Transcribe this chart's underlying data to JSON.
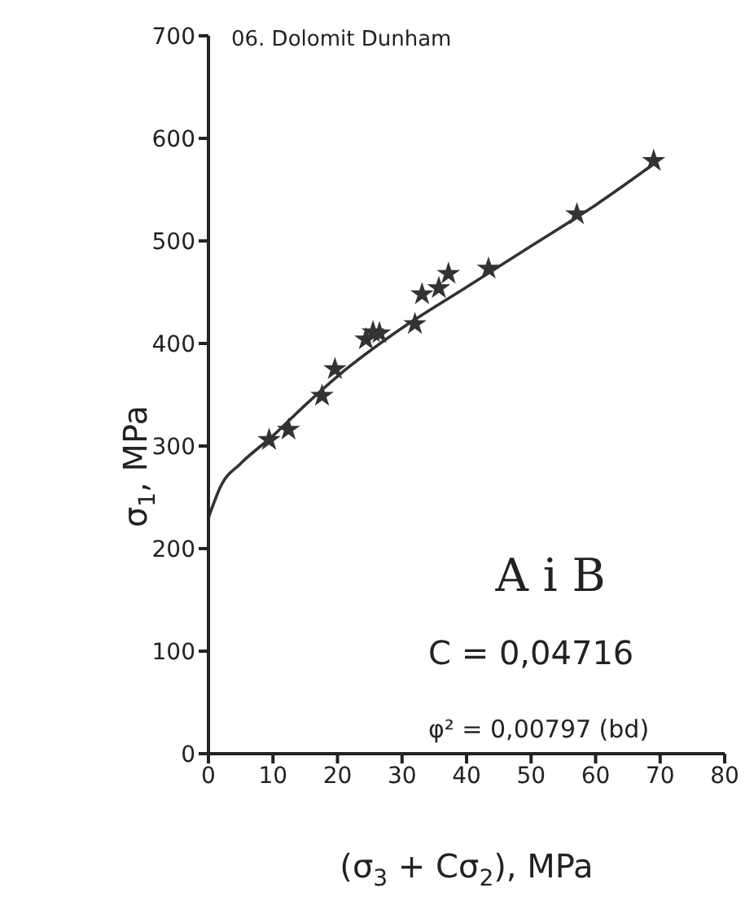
{
  "chart_data": {
    "type": "scatter",
    "title": "06. Dolomit Dunham",
    "xlabel": "(σ$_{3}$ + Cσ$_{2}$), MPa",
    "ylabel": "σ$_{1}$, MPa",
    "annotations": [
      "A i B",
      "C = 0,04716",
      "φ² = 0,00797 (bd)"
    ],
    "series": [
      {
        "marker": "star",
        "color": "#333333",
        "x": [
          9.4,
          12.4,
          17.6,
          19.6,
          24.4,
          25.5,
          26.5,
          32,
          33.1,
          35.7,
          37.2,
          43.4,
          57.1,
          69
        ],
        "values": [
          306,
          316,
          349,
          375,
          404,
          411,
          410,
          419,
          448,
          454,
          468,
          473,
          526,
          578
        ]
      },
      {
        "type": "line",
        "marker": "none",
        "color": "#333333",
        "x": [
          0,
          2,
          5,
          10,
          15,
          20,
          30,
          40,
          50,
          60,
          69
        ],
        "values": [
          230,
          262,
          283,
          310,
          340,
          368,
          415,
          455,
          495,
          535,
          575
        ]
      }
    ],
    "xlim": [
      0,
      80
    ],
    "xticks": [
      0,
      10,
      20,
      30,
      40,
      50,
      60,
      70,
      80
    ],
    "ylim": [
      0,
      700
    ],
    "yticks": [
      0,
      100,
      200,
      300,
      400,
      500,
      600,
      700
    ],
    "grid": false,
    "line_style": "solid"
  }
}
